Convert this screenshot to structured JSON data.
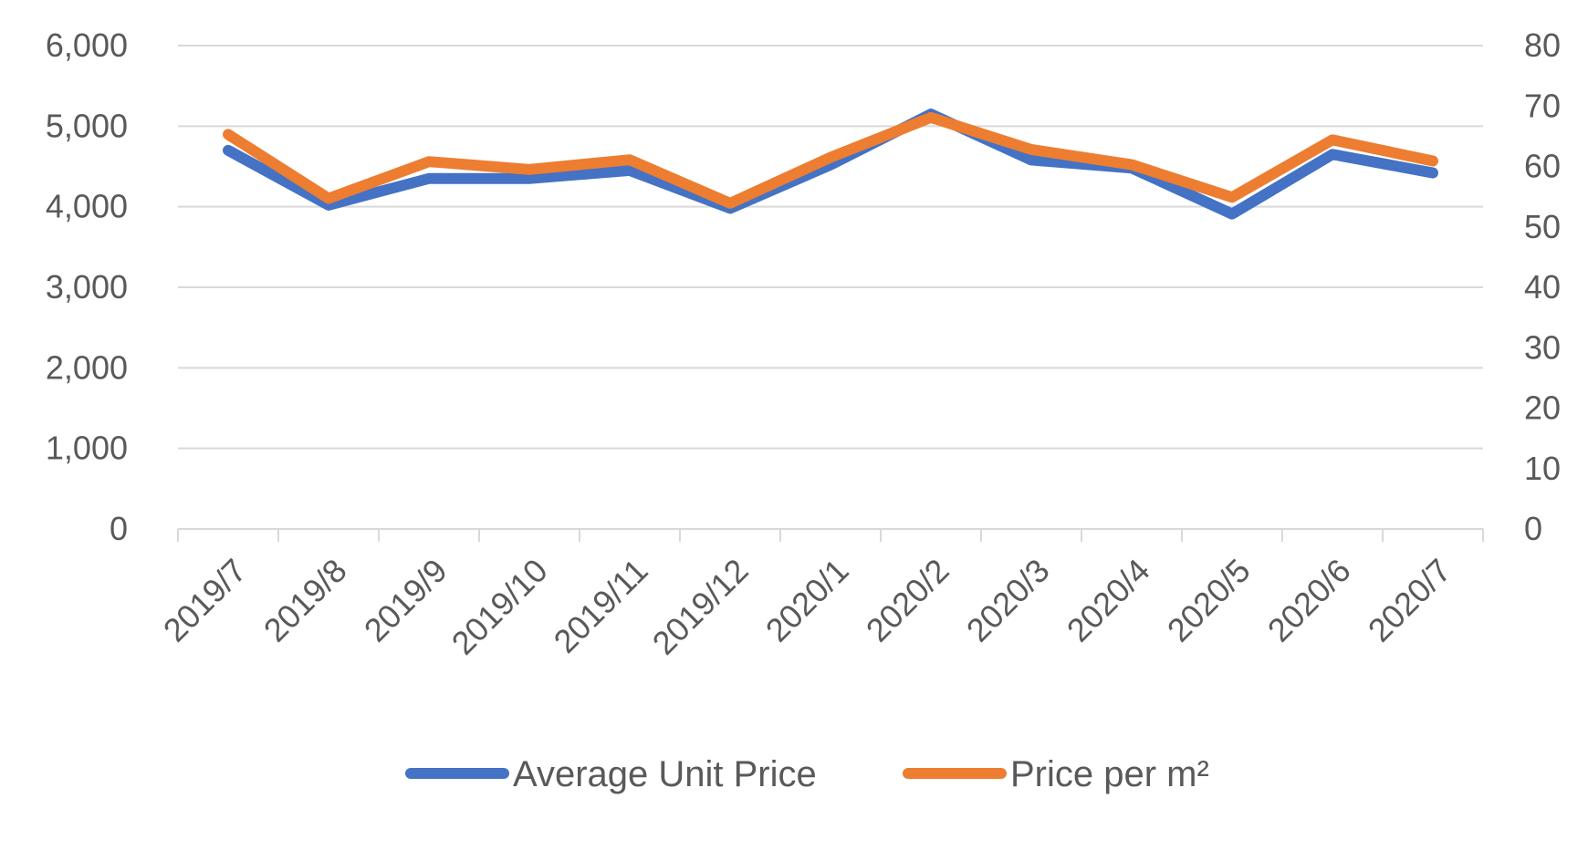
{
  "chart_data": {
    "type": "line",
    "categories": [
      "2019/7",
      "2019/8",
      "2019/9",
      "2019/10",
      "2019/11",
      "2019/12",
      "2020/1",
      "2020/2",
      "2020/3",
      "2020/4",
      "2020/5",
      "2020/6",
      "2020/7"
    ],
    "series": [
      {
        "name": "Average Unit Price",
        "axis": "left",
        "color": "#4472C4",
        "values": [
          4700,
          4020,
          4350,
          4350,
          4450,
          3980,
          4520,
          5150,
          4580,
          4480,
          3910,
          4650,
          4420
        ]
      },
      {
        "name": "Price per m²",
        "axis": "right",
        "color": "#ED7D31",
        "values": [
          65.3,
          54.7,
          60.8,
          59.5,
          61.1,
          53.9,
          61.5,
          68.1,
          62.8,
          60.3,
          54.9,
          64.4,
          60.9
        ]
      }
    ],
    "y_left": {
      "ylim": [
        0,
        6000
      ],
      "ticks": [
        "0",
        "1,000",
        "2,000",
        "3,000",
        "4,000",
        "5,000",
        "6,000"
      ]
    },
    "y_right": {
      "ylim": [
        0,
        80
      ],
      "ticks": [
        "0",
        "10",
        "20",
        "30",
        "40",
        "50",
        "60",
        "70",
        "80"
      ]
    },
    "title": "",
    "xlabel": "",
    "ylabel": "",
    "grid": true,
    "legend_position": "bottom"
  }
}
